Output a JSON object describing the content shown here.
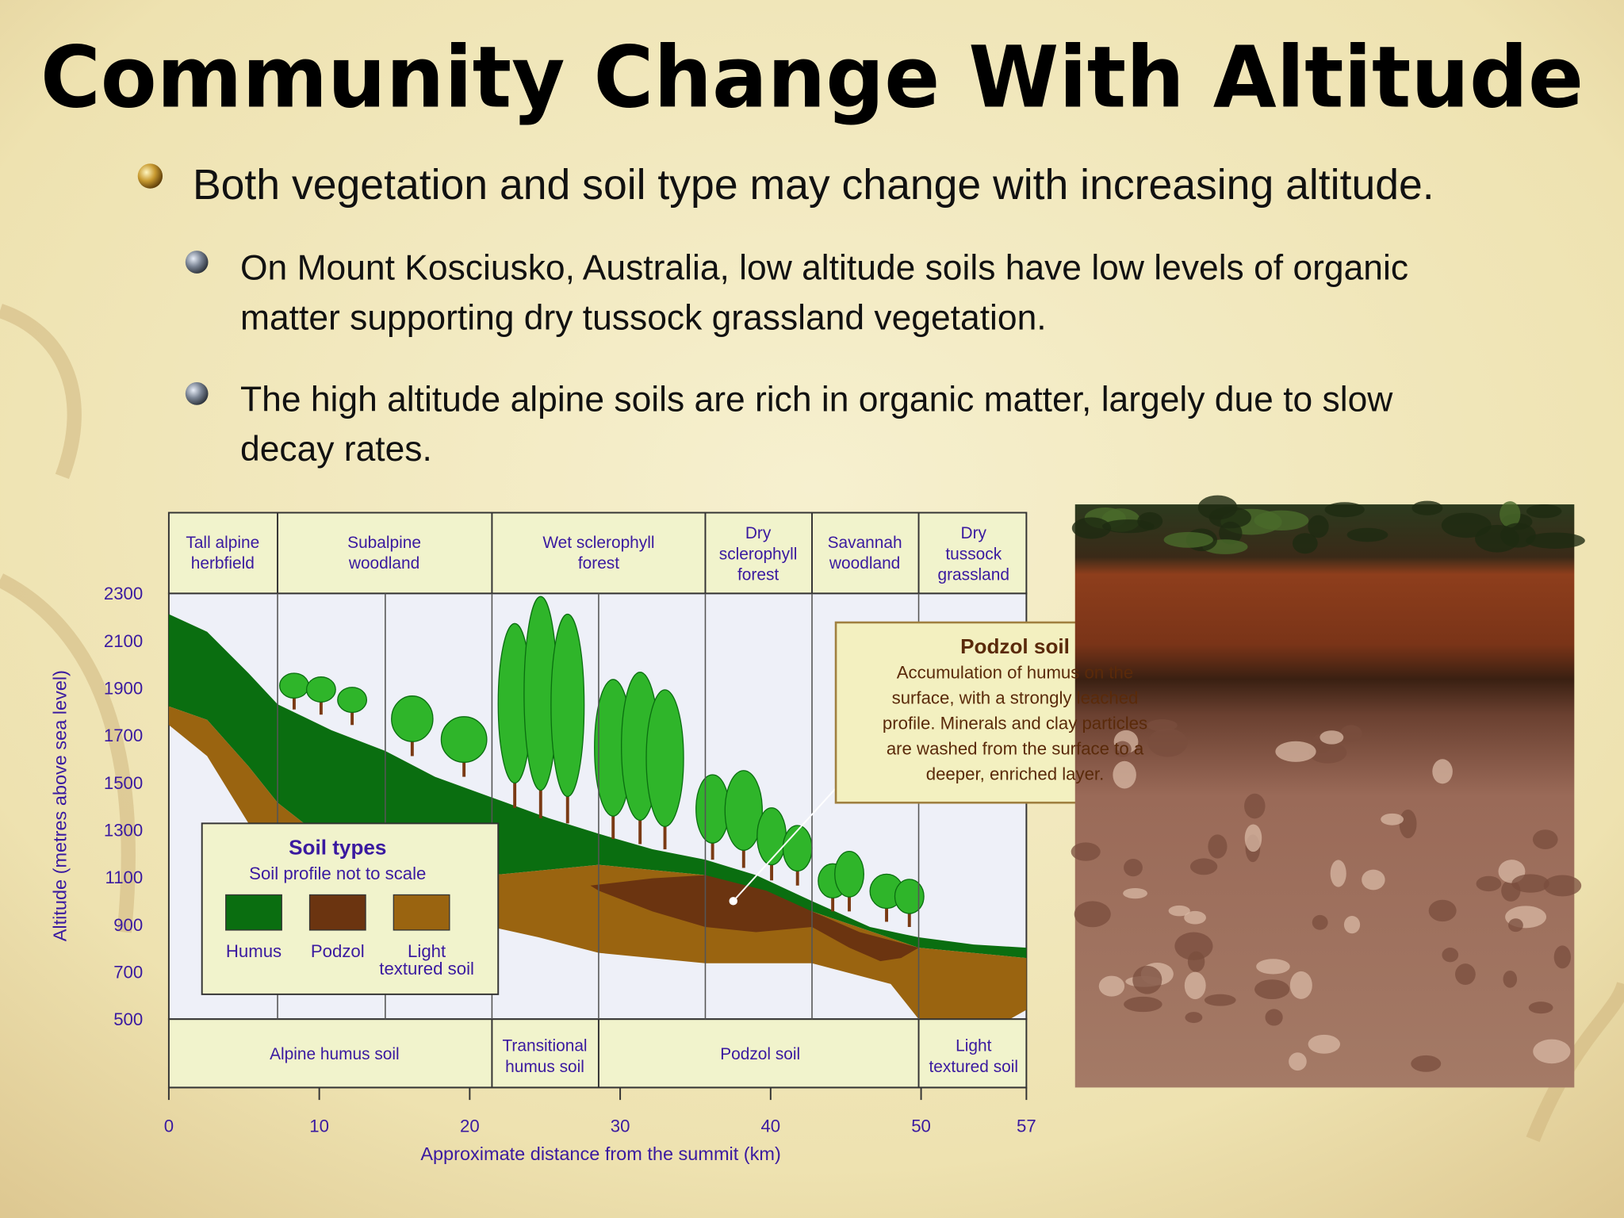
{
  "title": "Community Change With Altitude",
  "bullets": [
    {
      "lines": [
        "Both vegetation and soil type may change with increasing altitude."
      ]
    },
    {
      "lines": [
        "On Mount Kosciusko, Australia, low altitude soils have low levels of organic",
        "matter supporting dry tussock grassland vegetation."
      ]
    },
    {
      "lines": [
        "The high altitude alpine soils are rich in organic matter, largely due to slow",
        "decay rates."
      ]
    }
  ],
  "diagram": {
    "zones": [
      {
        "lines": [
          "Tall alpine",
          "herbfield"
        ]
      },
      {
        "lines": [
          "Subalpine",
          "woodland"
        ]
      },
      {
        "lines": [
          "Wet sclerophyll",
          "forest"
        ]
      },
      {
        "lines": [
          "Dry",
          "sclerophyll",
          "forest"
        ]
      },
      {
        "lines": [
          "Savannah",
          "woodland"
        ]
      },
      {
        "lines": [
          "Dry",
          "tussock",
          "grassland"
        ]
      }
    ],
    "soils": [
      {
        "lines": [
          "Alpine humus soil"
        ]
      },
      {
        "lines": [
          "Transitional",
          "humus soil"
        ]
      },
      {
        "lines": [
          "Podzol soil"
        ]
      },
      {
        "lines": [
          "Light",
          "textured soil"
        ]
      }
    ],
    "yticks": [
      2300,
      2100,
      1900,
      1700,
      1500,
      1300,
      1100,
      900,
      700,
      500
    ],
    "xticks": [
      0,
      10,
      20,
      30,
      40,
      50,
      57
    ],
    "x_label": "Approximate distance from the summit (km)",
    "y_label": "Altitude (metres above sea level)",
    "legend": {
      "title": "Soil types",
      "subtitle": "Soil profile not to scale",
      "items": [
        {
          "lines": [
            "Humus"
          ]
        },
        {
          "lines": [
            "Podzol"
          ]
        },
        {
          "lines": [
            "Light",
            "textured soil"
          ]
        }
      ]
    },
    "callout": {
      "title": "Podzol soil",
      "lines": [
        "Accumulation of humus on the",
        "surface, with a strongly leached",
        "profile. Minerals and clay particles",
        "are washed from the surface to a",
        "deeper, enriched layer."
      ]
    }
  }
}
